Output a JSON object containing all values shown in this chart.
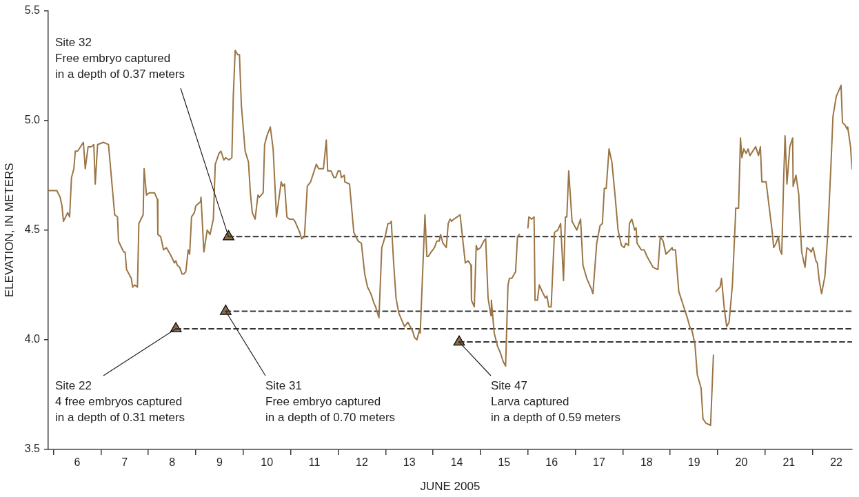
{
  "chart_data": {
    "type": "line",
    "xlabel": "JUNE 2005",
    "ylabel": "ELEVATION, IN METERS",
    "xlim": [
      5.89,
      22.83
    ],
    "ylim": [
      3.5,
      5.5
    ],
    "xticks": [
      {
        "value": 6,
        "label": null
      },
      {
        "value": 6.5,
        "label": "6"
      },
      {
        "value": 7,
        "label": null
      },
      {
        "value": 7.5,
        "label": "7"
      },
      {
        "value": 8,
        "label": null
      },
      {
        "value": 8.5,
        "label": "8"
      },
      {
        "value": 9,
        "label": null
      },
      {
        "value": 9.5,
        "label": "9"
      },
      {
        "value": 10,
        "label": null
      },
      {
        "value": 10.5,
        "label": "10"
      },
      {
        "value": 11,
        "label": null
      },
      {
        "value": 11.5,
        "label": "11"
      },
      {
        "value": 12,
        "label": null
      },
      {
        "value": 12.5,
        "label": "12"
      },
      {
        "value": 13,
        "label": null
      },
      {
        "value": 13.5,
        "label": "13"
      },
      {
        "value": 14,
        "label": null
      },
      {
        "value": 14.5,
        "label": "14"
      },
      {
        "value": 15,
        "label": null
      },
      {
        "value": 15.5,
        "label": "15"
      },
      {
        "value": 16,
        "label": null
      },
      {
        "value": 16.5,
        "label": "16"
      },
      {
        "value": 17,
        "label": null
      },
      {
        "value": 17.5,
        "label": "17"
      },
      {
        "value": 18,
        "label": null
      },
      {
        "value": 18.5,
        "label": "18"
      },
      {
        "value": 19,
        "label": null
      },
      {
        "value": 19.5,
        "label": "19"
      },
      {
        "value": 20,
        "label": null
      },
      {
        "value": 20.5,
        "label": "20"
      },
      {
        "value": 21,
        "label": null
      },
      {
        "value": 21.5,
        "label": "21"
      },
      {
        "value": 22,
        "label": null
      },
      {
        "value": 22.5,
        "label": "22"
      }
    ],
    "yticks": [
      {
        "value": 3.5,
        "label": "3.5"
      },
      {
        "value": 4,
        "label": "4.0"
      },
      {
        "value": 4.5,
        "label": "4.5"
      },
      {
        "value": 5,
        "label": "5.0"
      },
      {
        "value": 5.5,
        "label": "5.5"
      }
    ],
    "legend": false,
    "series": [
      {
        "color": "#9a7545",
        "marker": "none",
        "line_style": "solid",
        "x": [
          5.89,
          6.07,
          6.14,
          6.18,
          6.21,
          6.3,
          6.34,
          6.38,
          6.43,
          6.46,
          6.51,
          6.63,
          6.67,
          6.73,
          6.8,
          6.85,
          6.88,
          6.93,
          7.05,
          7.16,
          7.29,
          7.35,
          7.37,
          7.48,
          7.51,
          7.54,
          7.64,
          7.67,
          7.71,
          7.77,
          7.8,
          7.89,
          7.91,
          7.96,
          8.02,
          8.13,
          8.19,
          8.2,
          8.26,
          8.32,
          8.38,
          8.46,
          8.55,
          8.58,
          8.61,
          8.66,
          8.71,
          8.75,
          8.79,
          8.84,
          8.87,
          8.91,
          8.97,
          9.0,
          9.1,
          9.11,
          9.17,
          9.24,
          9.3,
          9.37,
          9.41,
          9.49,
          9.53,
          9.59,
          9.63,
          9.7,
          9.76,
          9.79,
          9.83,
          9.88,
          9.92,
          9.96,
          10.04,
          10.11,
          10.15,
          10.19,
          10.25,
          10.31,
          10.34,
          10.42,
          10.45,
          10.5,
          10.57,
          10.63,
          10.7,
          10.8,
          10.83,
          10.87,
          10.92,
          10.97,
          11.05,
          11.09,
          11.19,
          11.23,
          11.29,
          11.35,
          11.42,
          11.54,
          11.59,
          11.69,
          11.75,
          11.78,
          11.85,
          11.91,
          11.95,
          12.0,
          12.04,
          12.07,
          12.13,
          12.14,
          12.24,
          12.33,
          12.42,
          12.49,
          12.56,
          12.62,
          12.69,
          12.75,
          12.79,
          12.86,
          12.92,
          12.99,
          13.05,
          13.09,
          13.12,
          13.17,
          13.22,
          13.28,
          13.4,
          13.47,
          13.57,
          13.61,
          13.66,
          13.72,
          13.73,
          13.83,
          13.87,
          13.9,
          13.96,
          14.03,
          14.08,
          14.13,
          14.16,
          14.21,
          14.28,
          14.32,
          14.36,
          14.39,
          14.44,
          14.51,
          14.57,
          14.61,
          14.68,
          14.74,
          14.8,
          14.81,
          14.87,
          14.91,
          14.94,
          15.0,
          15.07,
          15.11,
          15.16,
          15.22,
          15.23,
          15.29,
          15.36,
          15.42,
          15.48,
          15.53,
          15.58,
          15.61,
          15.66,
          15.74,
          15.78,
          15.82,
          15.9,
          16.0,
          16.02,
          16.08,
          16.13,
          16.15,
          16.2,
          16.24,
          16.3,
          16.37,
          16.4,
          16.44,
          16.49,
          16.56,
          16.63,
          16.69,
          16.75,
          16.79,
          16.82,
          16.86,
          16.93,
          17.03,
          17.11,
          17.16,
          17.24,
          17.34,
          17.37,
          17.45,
          17.52,
          17.57,
          17.61,
          17.65,
          17.71,
          17.77,
          17.84,
          17.9,
          17.97,
          18.03,
          18.06,
          18.12,
          18.14,
          18.19,
          18.25,
          18.28,
          18.3,
          18.39,
          18.45,
          18.51,
          18.56,
          18.64,
          18.74,
          18.79,
          18.85,
          18.91,
          19.0,
          19.04,
          19.05,
          19.11,
          19.18,
          19.27,
          19.36,
          19.41,
          19.46,
          19.52,
          19.57,
          19.65,
          19.69,
          19.75,
          19.85,
          19.91,
          19.93,
          19.96,
          20.05,
          20.08,
          20.14,
          20.19,
          20.24,
          20.31,
          20.37,
          20.38,
          20.44,
          20.48,
          20.51,
          20.55,
          20.6,
          20.64,
          20.68,
          20.8,
          20.86,
          20.9,
          20.93,
          21.02,
          21.06,
          21.15,
          21.18,
          21.23,
          21.28,
          21.31,
          21.35,
          21.39,
          21.42,
          21.46,
          21.52,
          21.58,
          21.59,
          21.65,
          21.71,
          21.72,
          21.77,
          21.84,
          21.88,
          21.94,
          21.97,
          22.01,
          22.07,
          22.1,
          22.14,
          22.19,
          22.26,
          22.32,
          22.39,
          22.43,
          22.5,
          22.6,
          22.63,
          22.68,
          22.73,
          22.74,
          22.8,
          22.83
        ],
        "values": [
          4.68,
          4.68,
          4.65,
          4.61,
          4.54,
          4.58,
          4.56,
          4.74,
          4.78,
          4.86,
          4.86,
          4.9,
          4.78,
          4.88,
          4.88,
          4.89,
          4.71,
          4.89,
          4.9,
          4.89,
          4.57,
          4.56,
          4.45,
          4.4,
          4.4,
          4.32,
          4.28,
          4.24,
          4.25,
          4.24,
          4.53,
          4.57,
          4.78,
          4.66,
          4.67,
          4.67,
          4.64,
          4.48,
          4.47,
          4.41,
          4.42,
          4.39,
          4.35,
          4.36,
          4.34,
          4.33,
          4.3,
          4.3,
          4.31,
          4.41,
          4.39,
          4.56,
          4.58,
          4.61,
          4.63,
          4.65,
          4.4,
          4.5,
          4.48,
          4.55,
          4.8,
          4.85,
          4.86,
          4.82,
          4.83,
          4.82,
          4.83,
          5.11,
          5.32,
          5.3,
          5.3,
          5.07,
          4.86,
          4.81,
          4.67,
          4.58,
          4.55,
          4.66,
          4.65,
          4.67,
          4.89,
          4.93,
          4.97,
          4.87,
          4.56,
          4.72,
          4.7,
          4.71,
          4.56,
          4.55,
          4.55,
          4.54,
          4.49,
          4.46,
          4.47,
          4.7,
          4.72,
          4.8,
          4.78,
          4.78,
          4.91,
          4.77,
          4.77,
          4.74,
          4.74,
          4.77,
          4.77,
          4.74,
          4.75,
          4.72,
          4.71,
          4.49,
          4.45,
          4.44,
          4.3,
          4.24,
          4.21,
          4.17,
          4.15,
          4.1,
          4.42,
          4.47,
          4.53,
          4.53,
          4.54,
          4.35,
          4.19,
          4.12,
          4.06,
          4.08,
          4.04,
          4.01,
          4.0,
          4.05,
          4.03,
          4.57,
          4.38,
          4.38,
          4.4,
          4.42,
          4.45,
          4.45,
          4.48,
          4.44,
          4.42,
          4.53,
          4.55,
          4.54,
          4.55,
          4.56,
          4.57,
          4.49,
          4.35,
          4.36,
          4.34,
          4.18,
          4.15,
          4.43,
          4.41,
          4.42,
          4.45,
          4.46,
          4.19,
          4.11,
          4.18,
          4.03,
          3.97,
          3.94,
          3.9,
          3.88,
          4.25,
          4.28,
          4.28,
          4.31,
          4.47,
          4.48,
          null,
          4.51,
          4.56,
          4.55,
          4.56,
          4.18,
          4.18,
          4.25,
          4.22,
          4.19,
          4.2,
          4.15,
          4.15,
          4.49,
          4.5,
          4.53,
          4.27,
          4.56,
          4.56,
          4.77,
          4.54,
          4.5,
          4.55,
          4.34,
          4.28,
          4.23,
          4.21,
          4.44,
          4.52,
          4.53,
          4.69,
          4.69,
          4.87,
          4.81,
          4.65,
          4.5,
          4.43,
          4.42,
          4.44,
          4.43,
          4.53,
          4.55,
          4.5,
          4.51,
          4.44,
          4.41,
          4.41,
          4.38,
          4.36,
          4.33,
          4.32,
          4.47,
          4.45,
          4.39,
          4.41,
          4.42,
          4.41,
          4.41,
          4.22,
          4.16,
          4.1,
          4.06,
          4.04,
          3.98,
          3.84,
          3.78,
          3.64,
          3.62,
          3.61,
          3.93,
          null,
          4.22,
          4.24,
          4.28,
          4.14,
          4.06,
          4.08,
          4.25,
          4.54,
          4.6,
          4.6,
          4.92,
          4.83,
          4.87,
          4.85,
          4.87,
          4.84,
          4.88,
          4.84,
          4.88,
          4.72,
          4.72,
          4.65,
          4.49,
          4.42,
          4.44,
          4.47,
          4.41,
          4.39,
          4.73,
          4.93,
          4.71,
          4.88,
          4.92,
          4.7,
          4.75,
          4.66,
          4.6,
          4.4,
          4.33,
          4.42,
          4.41,
          4.4,
          4.42,
          4.36,
          4.35,
          4.27,
          4.21,
          4.29,
          4.48,
          4.81,
          5.02,
          5.11,
          5.16,
          4.99,
          4.98,
          4.96,
          4.97,
          4.88,
          4.78
        ]
      },
      {
        "type": "line",
        "color": "#333333",
        "marker": "none",
        "line_style": "dashed",
        "x": [
          9.69,
          22.83
        ],
        "values": [
          4.47,
          4.47
        ]
      },
      {
        "type": "line",
        "color": "#333333",
        "marker": "none",
        "line_style": "dashed",
        "x": [
          9.63,
          22.83
        ],
        "values": [
          4.13,
          4.13
        ]
      },
      {
        "type": "line",
        "color": "#333333",
        "marker": "none",
        "line_style": "dashed",
        "x": [
          8.58,
          22.83
        ],
        "values": [
          4.05,
          4.05
        ]
      },
      {
        "type": "line",
        "color": "#333333",
        "marker": "none",
        "line_style": "dashed",
        "x": [
          14.55,
          22.83
        ],
        "values": [
          3.99,
          3.99
        ]
      },
      {
        "type": "scatter",
        "color": "#8b6b4a",
        "marker": "triangle",
        "x": [
          9.69,
          9.63,
          8.58,
          14.55
        ],
        "values": [
          4.47,
          4.13,
          4.05,
          3.99
        ]
      }
    ],
    "annotations": [
      {
        "text": "Site 32\nFree embryo captured\nin a depth of 0.37 meters",
        "x": 9.69,
        "y": 4.47
      },
      {
        "text": "Site 22\n4 free embryos captured\nin a depth of 0.31 meters",
        "x": 8.58,
        "y": 4.05
      },
      {
        "text": "Site 31\nFree embryo captured\nin a depth of 0.70 meters",
        "x": 9.63,
        "y": 4.13
      },
      {
        "text": "Site 47\nLarva captured\nin a depth of 0.59 meters",
        "x": 14.55,
        "y": 3.99
      }
    ]
  }
}
